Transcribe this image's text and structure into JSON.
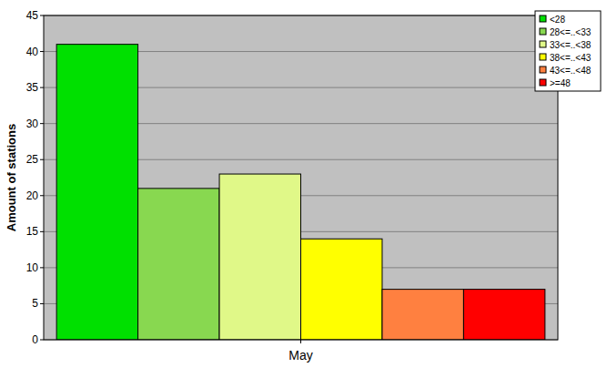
{
  "chart_data": {
    "type": "bar",
    "y_label": "Amount of stations",
    "categories": [
      "May"
    ],
    "series": [
      {
        "name": "<28",
        "color": "#00e000",
        "values": [
          41
        ]
      },
      {
        "name": "28<=..<33",
        "color": "#88d850",
        "values": [
          21
        ]
      },
      {
        "name": "33<=..<38",
        "color": "#e0f888",
        "values": [
          23
        ]
      },
      {
        "name": "38<=..<43",
        "color": "#ffff00",
        "values": [
          14
        ]
      },
      {
        "name": "43<=..<48",
        "color": "#ff8040",
        "values": [
          7
        ]
      },
      {
        "name": ">=48",
        "color": "#ff0000",
        "values": [
          7
        ]
      }
    ],
    "ylim": [
      0,
      45
    ],
    "yticks": [
      0,
      5,
      10,
      15,
      20,
      25,
      30,
      35,
      40,
      45
    ],
    "grid": true,
    "legend": "top-right"
  }
}
